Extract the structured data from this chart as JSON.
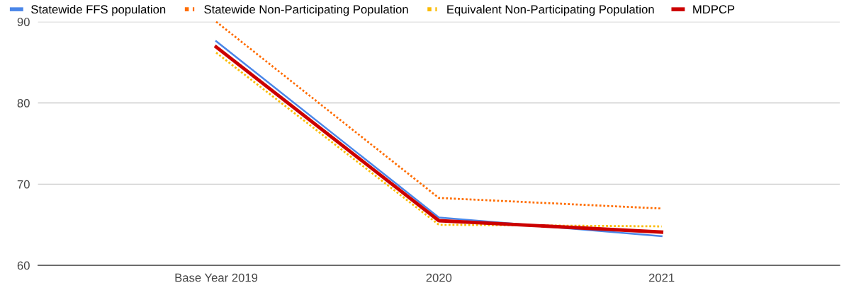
{
  "chart_data": {
    "type": "line",
    "categories": [
      "Base Year 2019",
      "2020",
      "2021"
    ],
    "series": [
      {
        "name": "Statewide FFS population",
        "color": "#4a86e8",
        "line_style": "solid",
        "values": [
          87.6,
          65.9,
          63.6
        ]
      },
      {
        "name": "Statewide Non-Participating Population",
        "color": "#ff6d01",
        "line_style": "dotted",
        "values": [
          90.0,
          68.3,
          67.0
        ]
      },
      {
        "name": "Equivalent Non-Participating Population",
        "color": "#fbbc04",
        "line_style": "dotted",
        "values": [
          86.2,
          65.0,
          64.8
        ]
      },
      {
        "name": "MDPCP",
        "color": "#cc0000",
        "line_style": "solid",
        "values": [
          86.9,
          65.5,
          64.1
        ]
      }
    ],
    "ylim": [
      60,
      90
    ],
    "yticks": [
      60,
      70,
      80,
      90
    ],
    "grid": "y",
    "legend": "top left",
    "marker": "none"
  }
}
